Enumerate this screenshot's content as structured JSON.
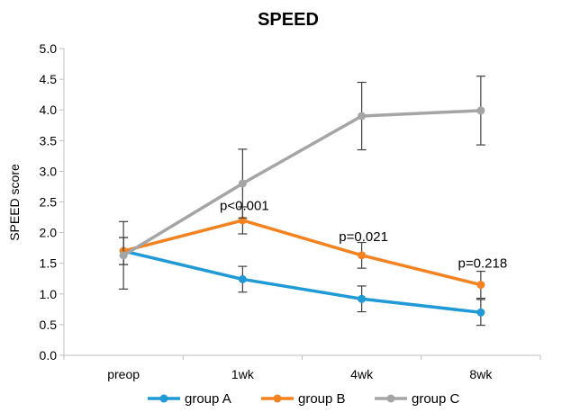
{
  "chart_data": {
    "type": "line",
    "title": "SPEED",
    "xlabel": "",
    "ylabel": "SPEED score",
    "categories": [
      "preop",
      "1wk",
      "4wk",
      "8wk"
    ],
    "ylim": [
      0,
      5
    ],
    "yticks": [
      "0.0",
      "0.5",
      "1.0",
      "1.5",
      "2.0",
      "2.5",
      "3.0",
      "3.5",
      "4.0",
      "4.5",
      "5.0"
    ],
    "grid": false,
    "legend": "bottom",
    "series": [
      {
        "name": "group A",
        "color": "#1f9ad6",
        "values": [
          1.7,
          1.24,
          0.92,
          0.7
        ],
        "err": [
          0.22,
          0.21,
          0.21,
          0.21
        ]
      },
      {
        "name": "group B",
        "color": "#f58220",
        "values": [
          1.7,
          2.2,
          1.63,
          1.15
        ],
        "err": [
          0.22,
          0.22,
          0.21,
          0.22
        ]
      },
      {
        "name": "group C",
        "color": "#a5a5a5",
        "values": [
          1.63,
          2.8,
          3.9,
          3.99
        ],
        "err": [
          0.55,
          0.56,
          0.55,
          0.56
        ]
      }
    ],
    "annotations": [
      {
        "text": "p<0.001",
        "category": "1wk",
        "y": 2.37
      },
      {
        "text": "p=0.021",
        "category": "4wk",
        "y": 1.86
      },
      {
        "text": "p=0.218",
        "category": "8wk",
        "y": 1.43
      }
    ]
  }
}
